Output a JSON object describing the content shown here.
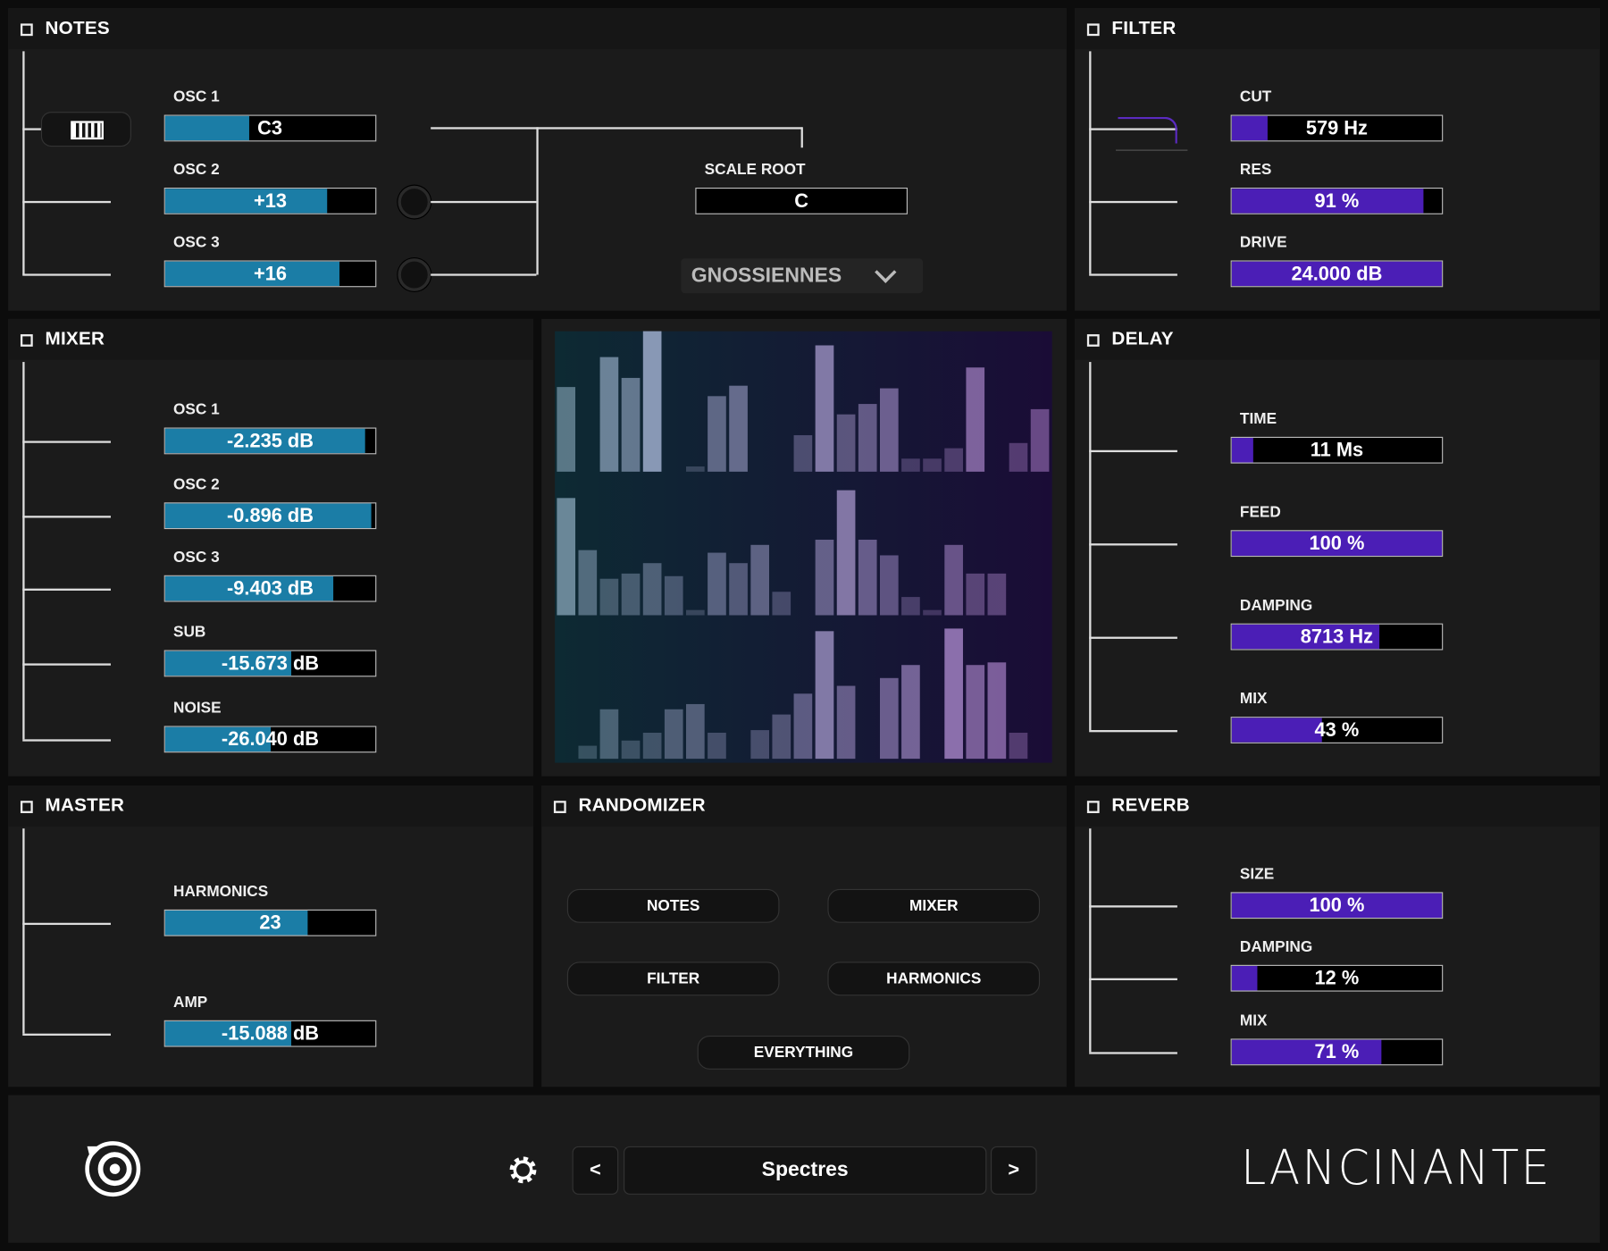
{
  "notes": {
    "title": "NOTES",
    "params": [
      {
        "label": "OSC 1",
        "value": "C3"
      },
      {
        "label": "OSC 2",
        "value": "+13"
      },
      {
        "label": "OSC 3",
        "value": "+16"
      }
    ],
    "scale_root": {
      "label": "SCALE ROOT",
      "value": "C"
    },
    "scale": "GNOSSIENNES"
  },
  "filter": {
    "title": "FILTER",
    "params": [
      {
        "label": "CUT",
        "value": "579 Hz"
      },
      {
        "label": "RES",
        "value": "91 %"
      },
      {
        "label": "DRIVE",
        "value": "24.000 dB"
      }
    ]
  },
  "mixer": {
    "title": "MIXER",
    "params": [
      {
        "label": "OSC 1",
        "value": "-2.235 dB"
      },
      {
        "label": "OSC 2",
        "value": "-0.896 dB"
      },
      {
        "label": "OSC 3",
        "value": "-9.403 dB"
      },
      {
        "label": "SUB",
        "value": "-15.673 dB"
      },
      {
        "label": "NOISE",
        "value": "-26.040 dB"
      }
    ]
  },
  "delay": {
    "title": "DELAY",
    "params": [
      {
        "label": "TIME",
        "value": "11 Ms"
      },
      {
        "label": "FEED",
        "value": "100 %"
      },
      {
        "label": "DAMPING",
        "value": "8713 Hz"
      },
      {
        "label": "MIX",
        "value": "43 %"
      }
    ]
  },
  "master": {
    "title": "MASTER",
    "params": [
      {
        "label": "HARMONICS",
        "value": "23"
      },
      {
        "label": "AMP",
        "value": "-15.088 dB"
      }
    ]
  },
  "randomizer": {
    "title": "RANDOMIZER",
    "buttons": [
      "NOTES",
      "MIXER",
      "FILTER",
      "HARMONICS",
      "EVERYTHING"
    ]
  },
  "reverb": {
    "title": "REVERB",
    "params": [
      {
        "label": "SIZE",
        "value": "100 %"
      },
      {
        "label": "DAMPING",
        "value": "12 %"
      },
      {
        "label": "MIX",
        "value": "71 %"
      }
    ]
  },
  "footer": {
    "prev": "<",
    "preset": "Spectres",
    "next": ">",
    "logo": "LANCINANTE"
  }
}
